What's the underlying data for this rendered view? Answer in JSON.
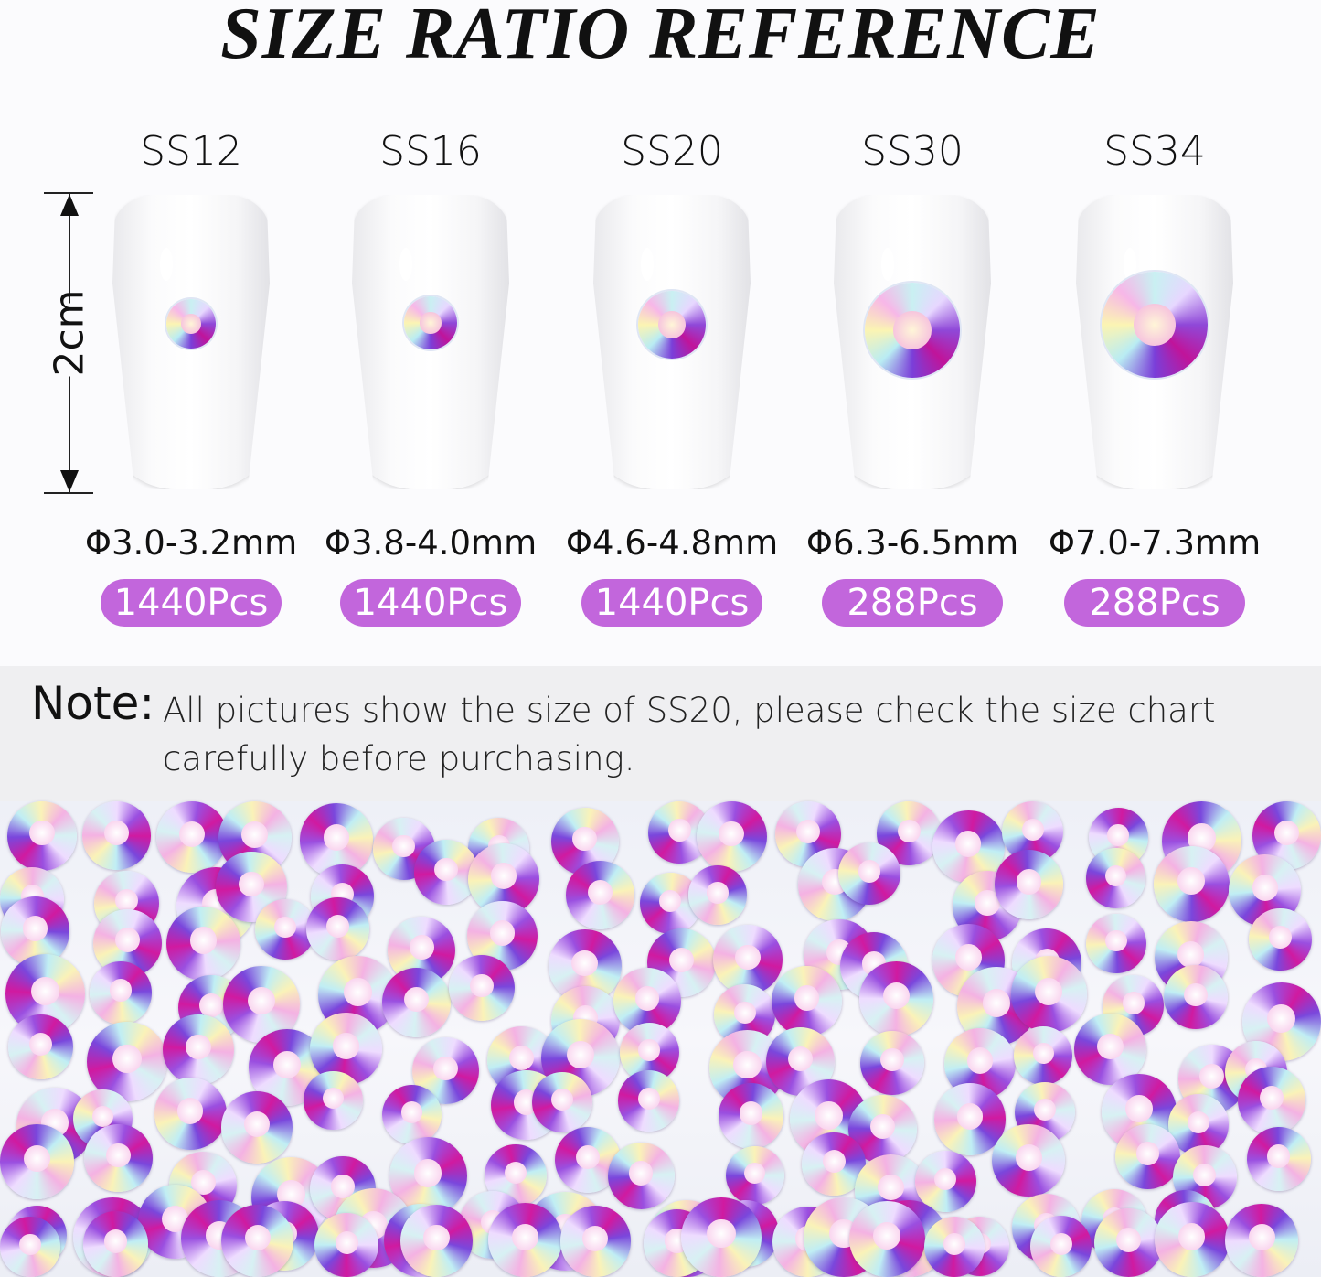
{
  "title": "SIZE RATIO REFERENCE",
  "scale_label": "2cm",
  "sizes": [
    {
      "name": "SS12",
      "diameter": "Φ3.0-3.2mm",
      "count": "1440Pcs"
    },
    {
      "name": "SS16",
      "diameter": "Φ3.8-4.0mm",
      "count": "1440Pcs"
    },
    {
      "name": "SS20",
      "diameter": "Φ4.6-4.8mm",
      "count": "1440Pcs"
    },
    {
      "name": "SS30",
      "diameter": "Φ6.3-6.5mm",
      "count": "288Pcs"
    },
    {
      "name": "SS34",
      "diameter": "Φ7.0-7.3mm",
      "count": "288Pcs"
    }
  ],
  "note": {
    "label": "Note:",
    "text": "All pictures show the size of SS20, please check the size chart carefully before purchasing."
  },
  "colors": {
    "badge": "#c266dc",
    "note_band": "#efeff1"
  }
}
